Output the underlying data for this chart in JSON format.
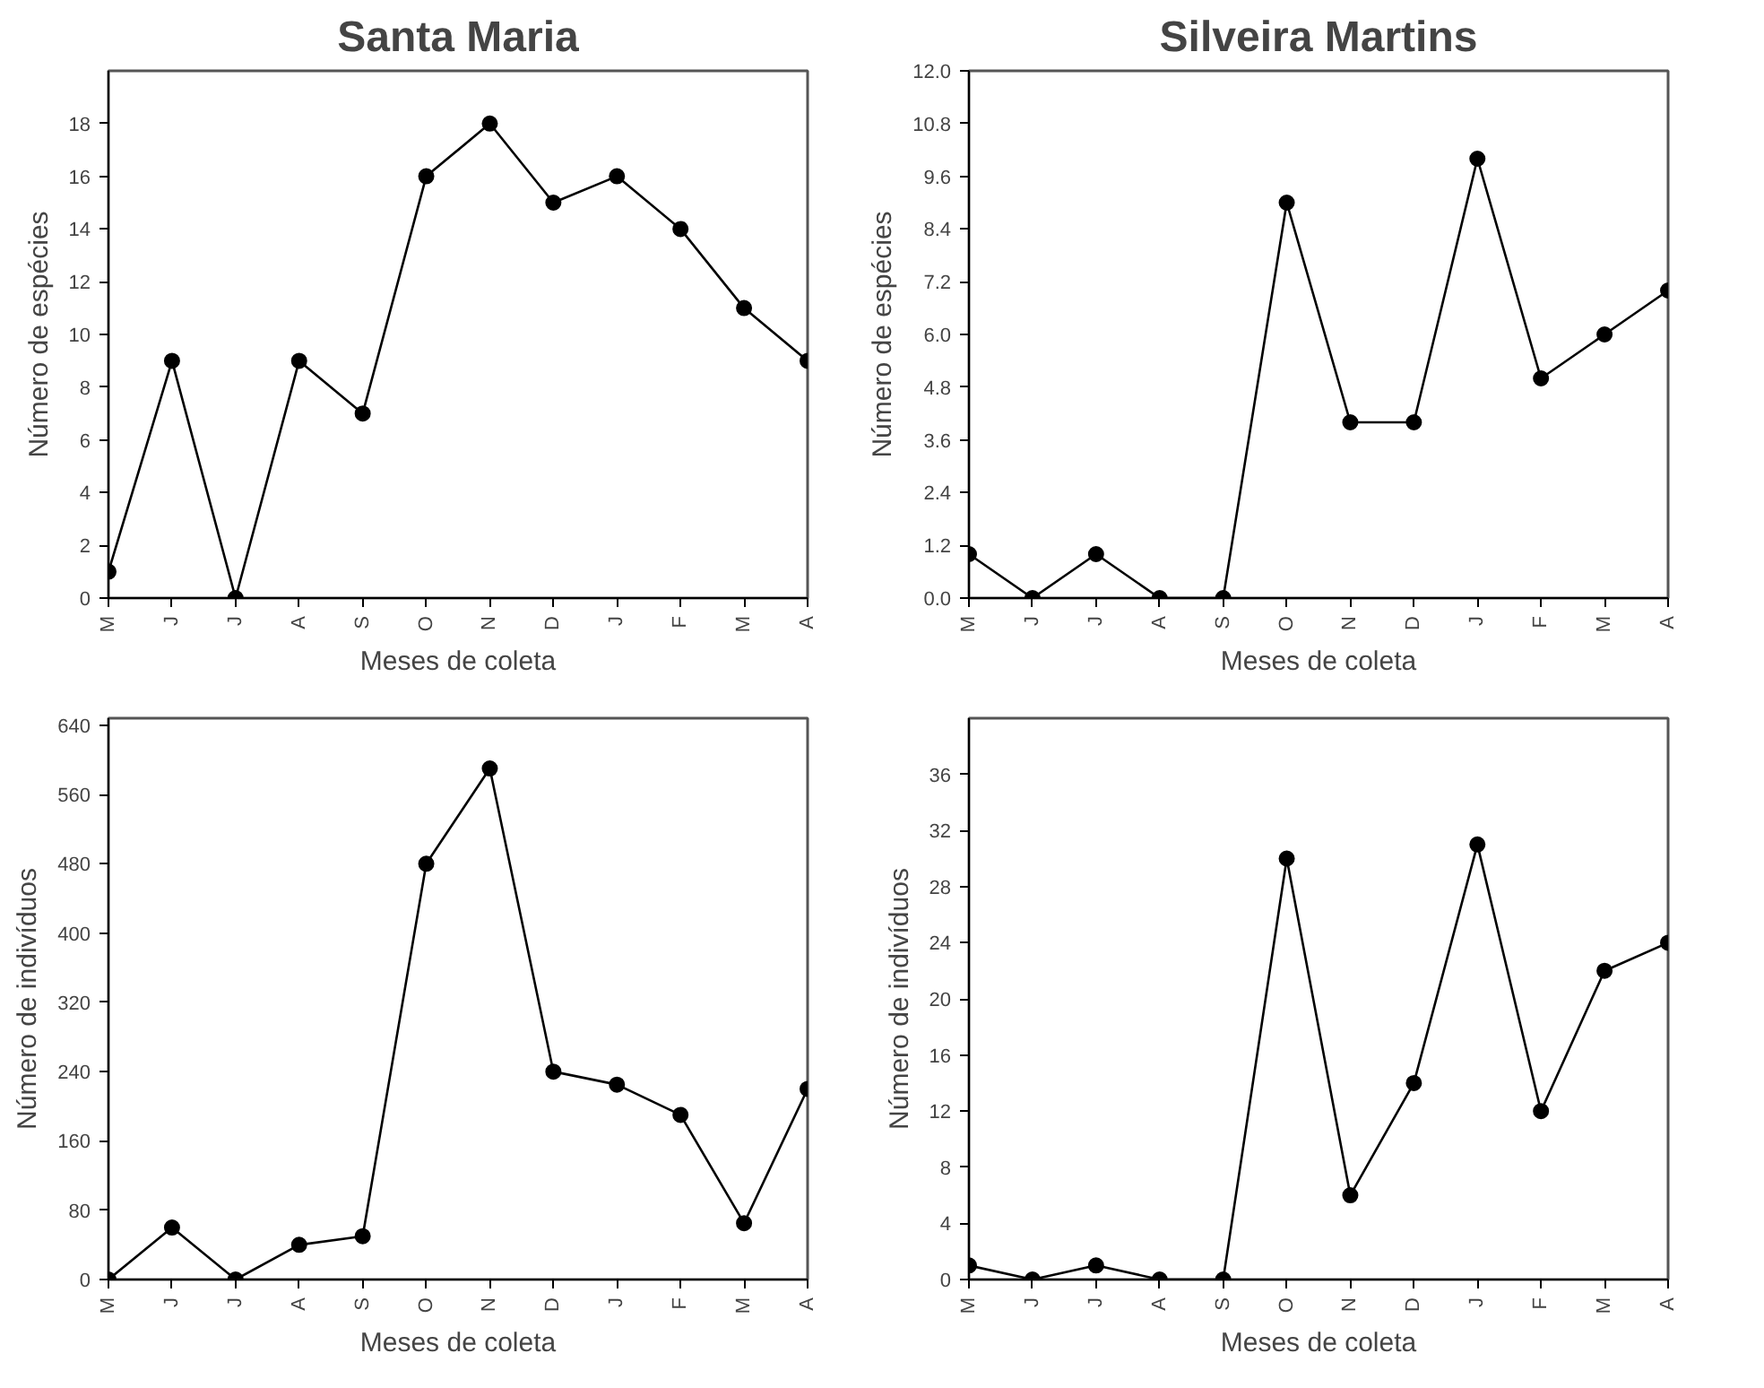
{
  "chart_data": [
    {
      "type": "line",
      "title": "Santa Maria",
      "xlabel": "Meses de coleta",
      "ylabel": "Número de espécies",
      "categories": [
        "M",
        "J",
        "J",
        "A",
        "S",
        "O",
        "N",
        "D",
        "J",
        "F",
        "M",
        "A"
      ],
      "series": [
        {
          "color": "#000000",
          "values": [
            1,
            9,
            0,
            9,
            7,
            16,
            18,
            15,
            16,
            14,
            11,
            9
          ]
        }
      ],
      "ylim": [
        0,
        20
      ],
      "yticks": [
        0,
        2,
        4,
        6,
        8,
        10,
        12,
        14,
        16,
        18
      ],
      "marker": "circle",
      "grid": false
    },
    {
      "type": "line",
      "title": "Silveira Martins",
      "xlabel": "Meses de coleta",
      "ylabel": "Número de espécies",
      "categories": [
        "M",
        "J",
        "J",
        "A",
        "S",
        "O",
        "N",
        "D",
        "J",
        "F",
        "M",
        "A"
      ],
      "series": [
        {
          "color": "#000000",
          "values": [
            1,
            0,
            1,
            0,
            0,
            9,
            4,
            4,
            10,
            5,
            6,
            7
          ]
        }
      ],
      "ylim": [
        0,
        12
      ],
      "yticks": [
        {
          "value": 0,
          "label": "0.0"
        },
        {
          "value": 1.2,
          "label": "1.2"
        },
        {
          "value": 2.4,
          "label": "2.4"
        },
        {
          "value": 3.6,
          "label": "3.6"
        },
        {
          "value": 4.8,
          "label": "4.8"
        },
        {
          "value": 6,
          "label": "6.0"
        },
        {
          "value": 7.2,
          "label": "7.2"
        },
        {
          "value": 8.4,
          "label": "8.4"
        },
        {
          "value": 9.6,
          "label": "9.6"
        },
        {
          "value": 10.8,
          "label": "10.8"
        },
        {
          "value": 12,
          "label": "12.0"
        }
      ],
      "marker": "circle",
      "grid": false
    },
    {
      "type": "line",
      "xlabel": "Meses de coleta",
      "ylabel": "Número de indivíduos",
      "categories": [
        "M",
        "J",
        "J",
        "A",
        "S",
        "O",
        "N",
        "D",
        "J",
        "F",
        "M",
        "A"
      ],
      "series": [
        {
          "color": "#000000",
          "values": [
            0,
            60,
            0,
            40,
            50,
            480,
            590,
            240,
            225,
            190,
            65,
            220
          ]
        }
      ],
      "ylim": [
        0,
        648
      ],
      "yticks": [
        0,
        80,
        160,
        240,
        320,
        400,
        480,
        560,
        640
      ],
      "marker": "circle",
      "grid": false
    },
    {
      "type": "line",
      "xlabel": "Meses de coleta",
      "ylabel": "Número de indivíduos",
      "categories": [
        "M",
        "J",
        "J",
        "A",
        "S",
        "O",
        "N",
        "D",
        "J",
        "F",
        "M",
        "A"
      ],
      "series": [
        {
          "color": "#000000",
          "values": [
            1,
            0,
            1,
            0,
            0,
            30,
            6,
            14,
            31,
            12,
            22,
            24
          ]
        }
      ],
      "ylim": [
        0,
        40
      ],
      "yticks": [
        0,
        4,
        8,
        12,
        16,
        20,
        24,
        28,
        32,
        36
      ],
      "marker": "circle",
      "grid": false
    }
  ]
}
